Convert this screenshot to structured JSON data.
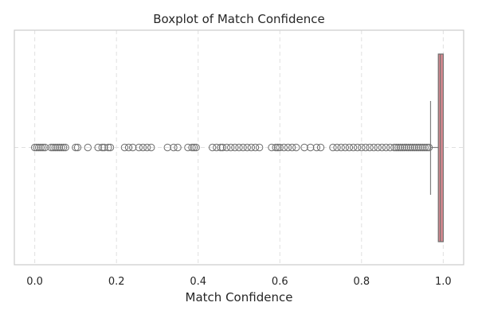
{
  "chart_data": {
    "type": "boxplot",
    "orientation": "horizontal",
    "title": "Boxplot of Match Confidence",
    "xlabel": "Match Confidence",
    "ylabel": "",
    "xlim": [
      -0.05,
      1.05
    ],
    "x_ticks": [
      0.0,
      0.2,
      0.4,
      0.6,
      0.8,
      1.0
    ],
    "x_tick_labels": [
      "0.0",
      "0.2",
      "0.4",
      "0.6",
      "0.8",
      "1.0"
    ],
    "grid": true,
    "box": {
      "whisker_low": 0.969,
      "q1": 0.988,
      "median": 0.993,
      "q3": 1.0,
      "whisker_high": 1.0
    },
    "outliers": [
      0.0,
      0.005,
      0.01,
      0.015,
      0.02,
      0.025,
      0.04,
      0.045,
      0.05,
      0.055,
      0.06,
      0.065,
      0.07,
      0.075,
      0.1,
      0.105,
      0.13,
      0.155,
      0.165,
      0.17,
      0.18,
      0.185,
      0.22,
      0.23,
      0.24,
      0.255,
      0.265,
      0.275,
      0.285,
      0.325,
      0.34,
      0.35,
      0.375,
      0.385,
      0.39,
      0.395,
      0.435,
      0.445,
      0.455,
      0.46,
      0.47,
      0.48,
      0.49,
      0.5,
      0.51,
      0.52,
      0.53,
      0.54,
      0.55,
      0.58,
      0.59,
      0.595,
      0.6,
      0.61,
      0.62,
      0.63,
      0.64,
      0.66,
      0.675,
      0.69,
      0.7,
      0.73,
      0.74,
      0.75,
      0.76,
      0.77,
      0.78,
      0.79,
      0.8,
      0.81,
      0.82,
      0.83,
      0.84,
      0.85,
      0.86,
      0.87,
      0.88,
      0.885,
      0.89,
      0.895,
      0.9,
      0.905,
      0.91,
      0.915,
      0.92,
      0.925,
      0.93,
      0.935,
      0.94,
      0.945,
      0.95,
      0.955,
      0.96,
      0.965
    ],
    "colors": {
      "box_fill": "#dd8a92",
      "box_edge": "#6e6e6e",
      "whisker": "#808080",
      "outlier_edge": "#6e6e6e",
      "grid": "#e0e0e0",
      "frame": "#cccccc"
    }
  }
}
